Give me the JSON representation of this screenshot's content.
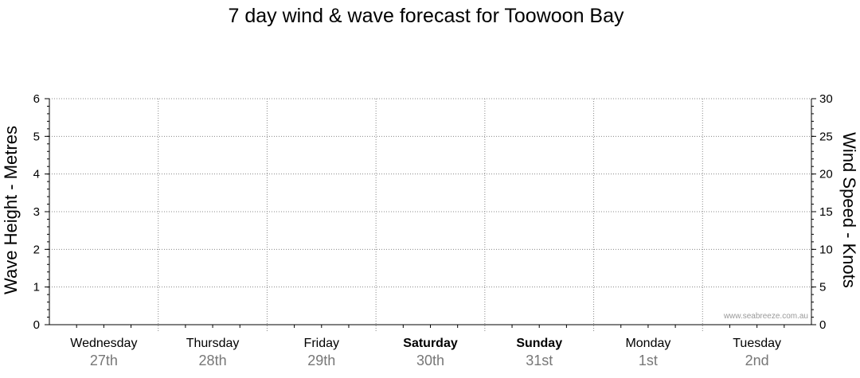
{
  "chart_data": {
    "type": "line",
    "title": "7 day wind & wave forecast for Toowoon Bay",
    "y_left": {
      "label": "Wave Height - Metres",
      "range": [
        0,
        6
      ],
      "ticks": [
        "0",
        "1",
        "2",
        "3",
        "4",
        "5",
        "6"
      ]
    },
    "y_right": {
      "label": "Wind Speed - Knots",
      "range": [
        0,
        30
      ],
      "ticks": [
        "0",
        "5",
        "10",
        "15",
        "20",
        "25",
        "30"
      ]
    },
    "days": [
      {
        "name": "Wednesday",
        "date": "27th",
        "bold": false
      },
      {
        "name": "Thursday",
        "date": "28th",
        "bold": false
      },
      {
        "name": "Friday",
        "date": "29th",
        "bold": false
      },
      {
        "name": "Saturday",
        "date": "30th",
        "bold": true
      },
      {
        "name": "Sunday",
        "date": "31st",
        "bold": true
      },
      {
        "name": "Monday",
        "date": "1st",
        "bold": false
      },
      {
        "name": "Tuesday",
        "date": "2nd",
        "bold": false
      }
    ],
    "series": [],
    "grid": true,
    "watermark": "www.seabreeze.com.au"
  }
}
